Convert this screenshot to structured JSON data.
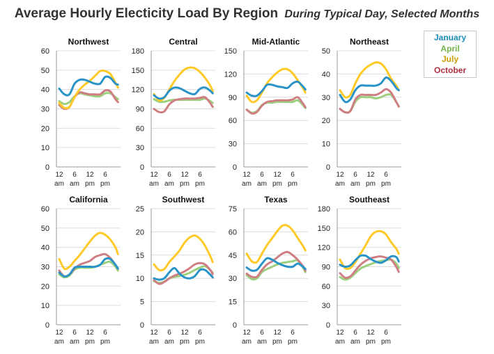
{
  "title": "Average Hourly Electicity Load By Region",
  "subtitle": "During Typical Day, Selected Months",
  "legend": [
    {
      "name": "January",
      "color": "#1b8ab9"
    },
    {
      "name": "April",
      "color": "#75b34a"
    },
    {
      "name": "July",
      "color": "#ca9c00"
    },
    {
      "name": "October",
      "color": "#b03040"
    }
  ],
  "series_colors": {
    "January": "#2a93c7",
    "April": "#9cd07e",
    "July": "#ffc926",
    "October": "#cf7e84"
  },
  "x_tick_labels": [
    [
      "12",
      "am"
    ],
    [
      "6",
      "am"
    ],
    [
      "12",
      "pm"
    ],
    [
      "6",
      "pm"
    ]
  ],
  "chart_data": [
    {
      "type": "line",
      "title": "Northwest",
      "ylim": [
        0,
        60
      ],
      "yticks": [
        0,
        10,
        20,
        30,
        40,
        50,
        60
      ],
      "x": [
        0,
        2,
        4,
        6,
        8,
        10,
        12,
        14,
        16,
        18,
        20,
        22,
        23
      ],
      "series": [
        {
          "name": "January",
          "values": [
            40.5,
            37.5,
            37.5,
            43,
            45,
            45,
            44,
            43,
            43,
            46.5,
            46,
            43,
            42.5
          ]
        },
        {
          "name": "April",
          "values": [
            34,
            32.5,
            33.5,
            36.5,
            38,
            37.5,
            37,
            36.5,
            36.5,
            38,
            38,
            36,
            35
          ]
        },
        {
          "name": "July",
          "values": [
            33,
            30.5,
            31,
            36,
            40,
            42.5,
            44.5,
            47,
            49.5,
            49.5,
            48,
            43.5,
            41
          ]
        },
        {
          "name": "October",
          "values": [
            32,
            30,
            31,
            36,
            38.5,
            38,
            37.5,
            37.5,
            37.5,
            39.5,
            39,
            35,
            33.5
          ]
        }
      ]
    },
    {
      "type": "line",
      "title": "Central",
      "ylim": [
        0,
        180
      ],
      "yticks": [
        0,
        30,
        60,
        90,
        120,
        150,
        180
      ],
      "x": [
        0,
        2,
        4,
        6,
        8,
        10,
        12,
        14,
        16,
        18,
        20,
        22,
        23
      ],
      "series": [
        {
          "name": "January",
          "values": [
            111,
            106,
            108,
            118,
            123,
            122,
            118,
            114,
            113,
            121,
            123,
            118,
            114
          ]
        },
        {
          "name": "April",
          "values": [
            105,
            101,
            101,
            103,
            104,
            104,
            104,
            104,
            104,
            104,
            106,
            102,
            99
          ]
        },
        {
          "name": "July",
          "values": [
            113,
            103,
            107,
            120,
            133,
            143,
            151,
            154,
            153,
            147,
            138,
            126,
            117
          ]
        },
        {
          "name": "October",
          "values": [
            90,
            85,
            86,
            97,
            103,
            105,
            106,
            106,
            106,
            107,
            108,
            99,
            93
          ]
        }
      ]
    },
    {
      "type": "line",
      "title": "Mid-Atlantic",
      "ylim": [
        0,
        150
      ],
      "yticks": [
        0,
        30,
        60,
        90,
        120,
        150
      ],
      "x": [
        0,
        2,
        4,
        6,
        8,
        10,
        12,
        14,
        16,
        18,
        20,
        22,
        23
      ],
      "series": [
        {
          "name": "January",
          "values": [
            96,
            92,
            92,
            98,
            106,
            106,
            104,
            103,
            102,
            108,
            110,
            104,
            100
          ]
        },
        {
          "name": "April",
          "values": [
            74,
            70,
            72,
            80,
            83,
            83,
            84,
            84,
            84,
            84,
            86,
            80,
            76
          ]
        },
        {
          "name": "July",
          "values": [
            92,
            84,
            86,
            96,
            108,
            116,
            122,
            126,
            126,
            121,
            112,
            102,
            96
          ]
        },
        {
          "name": "October",
          "values": [
            74,
            69,
            71,
            79,
            84,
            85,
            86,
            86,
            86,
            87,
            90,
            82,
            77
          ]
        }
      ]
    },
    {
      "type": "line",
      "title": "Northeast",
      "ylim": [
        0,
        50
      ],
      "yticks": [
        0,
        10,
        20,
        30,
        40,
        50
      ],
      "x": [
        0,
        2,
        4,
        6,
        8,
        10,
        12,
        14,
        16,
        18,
        20,
        22,
        23
      ],
      "series": [
        {
          "name": "January",
          "values": [
            31,
            28,
            29,
            33,
            35,
            35,
            35,
            35,
            36,
            38.5,
            37,
            34,
            33
          ]
        },
        {
          "name": "April",
          "values": [
            25,
            23.5,
            24,
            28,
            30,
            30,
            30,
            29.5,
            30,
            31,
            31,
            28,
            26
          ]
        },
        {
          "name": "July",
          "values": [
            33,
            30,
            31,
            36,
            40,
            42.5,
            44,
            45,
            44.5,
            42,
            38,
            35,
            33
          ]
        },
        {
          "name": "October",
          "values": [
            25,
            23.5,
            24,
            29,
            31,
            31,
            31,
            31,
            32,
            33.5,
            32,
            28,
            26
          ]
        }
      ]
    },
    {
      "type": "line",
      "title": "California",
      "ylim": [
        0,
        60
      ],
      "yticks": [
        0,
        10,
        20,
        30,
        40,
        50,
        60
      ],
      "x": [
        0,
        2,
        4,
        6,
        8,
        10,
        12,
        14,
        16,
        18,
        20,
        22,
        23
      ],
      "series": [
        {
          "name": "January",
          "values": [
            27,
            25,
            26,
            29.5,
            30,
            30,
            30,
            30,
            31,
            34,
            34,
            31,
            29
          ]
        },
        {
          "name": "April",
          "values": [
            26,
            24.5,
            25.5,
            28.5,
            29.5,
            29.5,
            29.5,
            30,
            31,
            32,
            32.5,
            30,
            28
          ]
        },
        {
          "name": "July",
          "values": [
            34,
            29,
            30,
            33,
            36,
            39.5,
            43,
            46,
            47.5,
            46.5,
            44,
            40,
            36.5
          ]
        },
        {
          "name": "October",
          "values": [
            28,
            25,
            26,
            29,
            31,
            32,
            33,
            35,
            36,
            36.5,
            34.5,
            31,
            29
          ]
        }
      ]
    },
    {
      "type": "line",
      "title": "Southwest",
      "ylim": [
        0,
        25
      ],
      "yticks": [
        0,
        5,
        10,
        15,
        20,
        25
      ],
      "x": [
        0,
        2,
        4,
        6,
        8,
        10,
        12,
        14,
        16,
        18,
        20,
        22,
        23
      ],
      "series": [
        {
          "name": "January",
          "values": [
            10,
            9.7,
            10,
            11.3,
            12.2,
            11,
            10.2,
            10,
            10.5,
            11.8,
            11.8,
            10.8,
            10.2
          ]
        },
        {
          "name": "April",
          "values": [
            9.4,
            9,
            9.3,
            10,
            10.3,
            10.5,
            10.8,
            11.2,
            11.8,
            12.3,
            12.6,
            11.8,
            11.2
          ]
        },
        {
          "name": "July",
          "values": [
            13,
            11.8,
            12,
            13.5,
            14.7,
            16,
            17.7,
            18.8,
            19.2,
            18.5,
            17,
            14.8,
            13.5
          ]
        },
        {
          "name": "October",
          "values": [
            9.6,
            8.8,
            9.2,
            10,
            10.6,
            11,
            11.5,
            12.2,
            13,
            13.3,
            13,
            11.8,
            10.9
          ]
        }
      ]
    },
    {
      "type": "line",
      "title": "Texas",
      "ylim": [
        0,
        75
      ],
      "yticks": [
        0,
        15,
        30,
        45,
        60,
        75
      ],
      "x": [
        0,
        2,
        4,
        6,
        8,
        10,
        12,
        14,
        16,
        18,
        20,
        22,
        23
      ],
      "series": [
        {
          "name": "January",
          "values": [
            37,
            35,
            35.5,
            39.5,
            43,
            42,
            40,
            38.5,
            37.5,
            37.5,
            39.5,
            37.5,
            36
          ]
        },
        {
          "name": "April",
          "values": [
            32,
            29.5,
            30,
            34,
            36,
            37.5,
            39,
            40,
            40.5,
            41,
            41.5,
            37,
            34
          ]
        },
        {
          "name": "July",
          "values": [
            46,
            41,
            40.5,
            46,
            51.5,
            56,
            60.5,
            64,
            64,
            61,
            56,
            51,
            48
          ]
        },
        {
          "name": "October",
          "values": [
            33,
            31,
            31,
            35.5,
            39,
            41,
            43.5,
            46,
            47,
            45,
            42,
            38,
            35
          ]
        }
      ]
    },
    {
      "type": "line",
      "title": "Southeast",
      "ylim": [
        0,
        180
      ],
      "yticks": [
        0,
        30,
        60,
        90,
        120,
        150,
        180
      ],
      "x": [
        0,
        2,
        4,
        6,
        8,
        10,
        12,
        14,
        16,
        18,
        20,
        22,
        23
      ],
      "series": [
        {
          "name": "January",
          "values": [
            93,
            90,
            92,
            100,
            107,
            107,
            102,
            98,
            96,
            100,
            106,
            105,
            98
          ]
        },
        {
          "name": "April",
          "values": [
            74,
            70,
            73,
            80,
            87,
            91,
            94,
            97,
            99,
            100,
            101,
            95,
            88
          ]
        },
        {
          "name": "July",
          "values": [
            101,
            88,
            88,
            97,
            110,
            123,
            137,
            144,
            145,
            140,
            128,
            118,
            110
          ]
        },
        {
          "name": "October",
          "values": [
            80,
            73,
            75,
            84,
            93,
            99,
            103,
            105,
            106,
            104,
            101,
            90,
            82
          ]
        }
      ]
    }
  ]
}
